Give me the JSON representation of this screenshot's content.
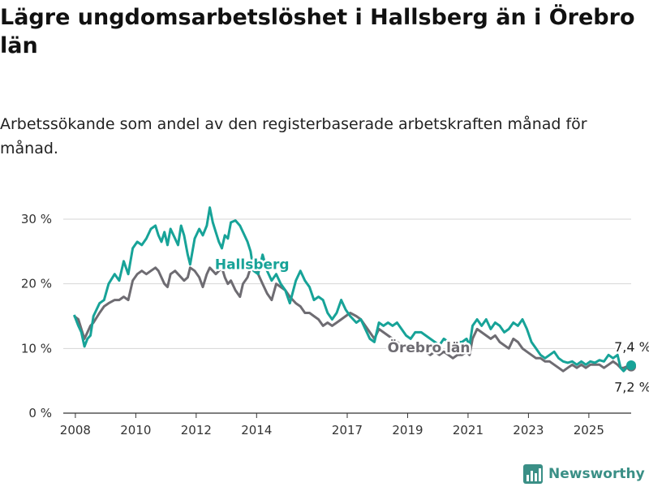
{
  "title": "Lägre ungdomsarbetslöshet i Hallsberg än i Örebro län",
  "subtitle": "Arbetssökande som andel av den registerbaserade arbetskraften månad för månad.",
  "brand": {
    "name": "Newsworthy",
    "icon": "newsworthy-logo-icon"
  },
  "colors": {
    "hallsberg": "#17a398",
    "orebro": "#6e6c72",
    "grid": "#d6d6d6",
    "axis": "#333333"
  },
  "chart_data": {
    "type": "line",
    "xlim": [
      2007.6,
      2026.4
    ],
    "ylim": [
      0,
      30
    ],
    "y_ticks": [
      0,
      10,
      20,
      30
    ],
    "y_tick_labels": [
      "0 %",
      "10 %",
      "20 %",
      "30 %"
    ],
    "x_ticks": [
      2008,
      2010,
      2012,
      2014,
      2017,
      2019,
      2021,
      2023,
      2025
    ],
    "x_tick_labels": [
      "2008",
      "2010",
      "2012",
      "2014",
      "2017",
      "2019",
      "2021",
      "2023",
      "2025"
    ],
    "grid": true,
    "series": [
      {
        "name": "Hallsberg",
        "color": "#17a398",
        "end_label": "7,4 %",
        "points": [
          [
            2007.96,
            15.2
          ],
          [
            2008.1,
            13.5
          ],
          [
            2008.2,
            12.5
          ],
          [
            2008.3,
            10.3
          ],
          [
            2008.4,
            11.5
          ],
          [
            2008.5,
            12.0
          ],
          [
            2008.6,
            15.0
          ],
          [
            2008.8,
            17.0
          ],
          [
            2008.95,
            17.5
          ],
          [
            2009.1,
            20.0
          ],
          [
            2009.3,
            21.5
          ],
          [
            2009.45,
            20.5
          ],
          [
            2009.6,
            23.5
          ],
          [
            2009.75,
            21.5
          ],
          [
            2009.9,
            25.5
          ],
          [
            2010.05,
            26.5
          ],
          [
            2010.2,
            26.0
          ],
          [
            2010.35,
            27.0
          ],
          [
            2010.5,
            28.5
          ],
          [
            2010.65,
            29.0
          ],
          [
            2010.75,
            27.5
          ],
          [
            2010.85,
            26.5
          ],
          [
            2010.95,
            28.0
          ],
          [
            2011.05,
            26.0
          ],
          [
            2011.15,
            28.5
          ],
          [
            2011.3,
            27.0
          ],
          [
            2011.4,
            26.0
          ],
          [
            2011.5,
            29.0
          ],
          [
            2011.6,
            27.5
          ],
          [
            2011.72,
            24.5
          ],
          [
            2011.8,
            23.0
          ],
          [
            2011.95,
            27.0
          ],
          [
            2012.1,
            28.5
          ],
          [
            2012.22,
            27.5
          ],
          [
            2012.35,
            29.0
          ],
          [
            2012.45,
            31.8
          ],
          [
            2012.55,
            29.5
          ],
          [
            2012.65,
            28.0
          ],
          [
            2012.75,
            26.5
          ],
          [
            2012.85,
            25.5
          ],
          [
            2012.95,
            27.5
          ],
          [
            2013.05,
            27.0
          ],
          [
            2013.15,
            29.5
          ],
          [
            2013.3,
            29.8
          ],
          [
            2013.45,
            29.0
          ],
          [
            2013.55,
            28.0
          ],
          [
            2013.7,
            26.5
          ],
          [
            2013.8,
            25.0
          ],
          [
            2013.9,
            22.0
          ],
          [
            2014.05,
            21.5
          ],
          [
            2014.2,
            24.5
          ],
          [
            2014.35,
            22.0
          ],
          [
            2014.5,
            20.5
          ],
          [
            2014.65,
            21.5
          ],
          [
            2014.8,
            20.0
          ],
          [
            2014.95,
            19.0
          ],
          [
            2015.1,
            17.0
          ],
          [
            2015.3,
            20.5
          ],
          [
            2015.45,
            22.0
          ],
          [
            2015.6,
            20.5
          ],
          [
            2015.75,
            19.5
          ],
          [
            2015.9,
            17.5
          ],
          [
            2016.05,
            18.0
          ],
          [
            2016.2,
            17.5
          ],
          [
            2016.35,
            15.5
          ],
          [
            2016.5,
            14.5
          ],
          [
            2016.65,
            15.5
          ],
          [
            2016.8,
            17.5
          ],
          [
            2016.95,
            16.0
          ],
          [
            2017.1,
            15.0
          ],
          [
            2017.3,
            14.0
          ],
          [
            2017.45,
            14.5
          ],
          [
            2017.6,
            13.0
          ],
          [
            2017.75,
            11.5
          ],
          [
            2017.9,
            11.0
          ],
          [
            2018.05,
            14.0
          ],
          [
            2018.2,
            13.5
          ],
          [
            2018.35,
            14.0
          ],
          [
            2018.5,
            13.5
          ],
          [
            2018.65,
            14.0
          ],
          [
            2018.8,
            13.0
          ],
          [
            2018.95,
            12.0
          ],
          [
            2019.1,
            11.5
          ],
          [
            2019.25,
            12.5
          ],
          [
            2019.45,
            12.5
          ],
          [
            2019.6,
            12.0
          ],
          [
            2019.75,
            11.5
          ],
          [
            2019.9,
            11.0
          ],
          [
            2020.05,
            10.5
          ],
          [
            2020.2,
            11.5
          ],
          [
            2020.35,
            11.0
          ],
          [
            2020.5,
            10.5
          ],
          [
            2020.65,
            11.0
          ],
          [
            2020.8,
            11.0
          ],
          [
            2020.95,
            11.5
          ],
          [
            2021.05,
            10.5
          ],
          [
            2021.15,
            13.5
          ],
          [
            2021.3,
            14.5
          ],
          [
            2021.45,
            13.5
          ],
          [
            2021.6,
            14.5
          ],
          [
            2021.75,
            13.0
          ],
          [
            2021.9,
            14.0
          ],
          [
            2022.05,
            13.5
          ],
          [
            2022.2,
            12.5
          ],
          [
            2022.35,
            13.0
          ],
          [
            2022.5,
            14.0
          ],
          [
            2022.65,
            13.5
          ],
          [
            2022.8,
            14.5
          ],
          [
            2022.95,
            13.0
          ],
          [
            2023.1,
            11.0
          ],
          [
            2023.25,
            10.0
          ],
          [
            2023.4,
            9.0
          ],
          [
            2023.55,
            8.5
          ],
          [
            2023.7,
            9.0
          ],
          [
            2023.85,
            9.5
          ],
          [
            2024.0,
            8.5
          ],
          [
            2024.15,
            8.0
          ],
          [
            2024.3,
            7.8
          ],
          [
            2024.45,
            8.0
          ],
          [
            2024.6,
            7.5
          ],
          [
            2024.75,
            8.0
          ],
          [
            2024.9,
            7.5
          ],
          [
            2025.05,
            8.0
          ],
          [
            2025.2,
            7.8
          ],
          [
            2025.35,
            8.2
          ],
          [
            2025.5,
            8.0
          ],
          [
            2025.65,
            9.0
          ],
          [
            2025.8,
            8.5
          ],
          [
            2025.95,
            9.0
          ],
          [
            2026.05,
            7.0
          ],
          [
            2026.15,
            6.5
          ],
          [
            2026.25,
            7.0
          ],
          [
            2026.4,
            7.4
          ]
        ]
      },
      {
        "name": "Örebro län",
        "color": "#6e6c72",
        "end_label": "7,2 %",
        "points": [
          [
            2007.96,
            15.0
          ],
          [
            2008.1,
            14.5
          ],
          [
            2008.2,
            13.0
          ],
          [
            2008.3,
            11.5
          ],
          [
            2008.4,
            12.5
          ],
          [
            2008.5,
            13.5
          ],
          [
            2008.6,
            14.0
          ],
          [
            2008.8,
            15.5
          ],
          [
            2008.95,
            16.5
          ],
          [
            2009.1,
            17.0
          ],
          [
            2009.3,
            17.5
          ],
          [
            2009.45,
            17.5
          ],
          [
            2009.6,
            18.0
          ],
          [
            2009.75,
            17.5
          ],
          [
            2009.9,
            20.5
          ],
          [
            2010.05,
            21.5
          ],
          [
            2010.2,
            22.0
          ],
          [
            2010.35,
            21.5
          ],
          [
            2010.5,
            22.0
          ],
          [
            2010.65,
            22.5
          ],
          [
            2010.75,
            22.0
          ],
          [
            2010.85,
            21.0
          ],
          [
            2010.95,
            20.0
          ],
          [
            2011.05,
            19.5
          ],
          [
            2011.15,
            21.5
          ],
          [
            2011.3,
            22.0
          ],
          [
            2011.4,
            21.5
          ],
          [
            2011.5,
            21.0
          ],
          [
            2011.6,
            20.5
          ],
          [
            2011.72,
            21.0
          ],
          [
            2011.8,
            22.5
          ],
          [
            2011.95,
            22.0
          ],
          [
            2012.1,
            21.0
          ],
          [
            2012.22,
            19.5
          ],
          [
            2012.35,
            21.5
          ],
          [
            2012.45,
            22.5
          ],
          [
            2012.55,
            22.0
          ],
          [
            2012.65,
            21.5
          ],
          [
            2012.75,
            22.0
          ],
          [
            2012.85,
            22.5
          ],
          [
            2012.95,
            21.0
          ],
          [
            2013.05,
            20.0
          ],
          [
            2013.15,
            20.5
          ],
          [
            2013.3,
            19.0
          ],
          [
            2013.45,
            18.0
          ],
          [
            2013.55,
            20.0
          ],
          [
            2013.7,
            21.0
          ],
          [
            2013.8,
            22.5
          ],
          [
            2013.9,
            23.0
          ],
          [
            2014.05,
            21.5
          ],
          [
            2014.2,
            20.0
          ],
          [
            2014.35,
            18.5
          ],
          [
            2014.5,
            17.5
          ],
          [
            2014.65,
            20.0
          ],
          [
            2014.8,
            19.5
          ],
          [
            2014.95,
            19.0
          ],
          [
            2015.1,
            18.0
          ],
          [
            2015.3,
            17.0
          ],
          [
            2015.45,
            16.5
          ],
          [
            2015.6,
            15.5
          ],
          [
            2015.75,
            15.5
          ],
          [
            2015.9,
            15.0
          ],
          [
            2016.05,
            14.5
          ],
          [
            2016.2,
            13.5
          ],
          [
            2016.35,
            14.0
          ],
          [
            2016.5,
            13.5
          ],
          [
            2016.65,
            14.0
          ],
          [
            2016.8,
            14.5
          ],
          [
            2016.95,
            15.0
          ],
          [
            2017.1,
            15.5
          ],
          [
            2017.3,
            15.0
          ],
          [
            2017.45,
            14.5
          ],
          [
            2017.6,
            13.5
          ],
          [
            2017.75,
            12.5
          ],
          [
            2017.9,
            11.5
          ],
          [
            2018.05,
            13.0
          ],
          [
            2018.2,
            12.5
          ],
          [
            2018.35,
            12.0
          ],
          [
            2018.5,
            11.5
          ],
          [
            2018.65,
            11.0
          ],
          [
            2018.8,
            10.5
          ],
          [
            2018.95,
            10.0
          ],
          [
            2019.1,
            9.5
          ],
          [
            2019.25,
            10.0
          ],
          [
            2019.45,
            10.0
          ],
          [
            2019.6,
            9.5
          ],
          [
            2019.75,
            9.0
          ],
          [
            2019.9,
            9.5
          ],
          [
            2020.05,
            9.0
          ],
          [
            2020.2,
            9.5
          ],
          [
            2020.35,
            9.0
          ],
          [
            2020.5,
            8.5
          ],
          [
            2020.65,
            9.0
          ],
          [
            2020.8,
            9.0
          ],
          [
            2020.95,
            9.5
          ],
          [
            2021.05,
            9.0
          ],
          [
            2021.15,
            11.5
          ],
          [
            2021.3,
            13.0
          ],
          [
            2021.45,
            12.5
          ],
          [
            2021.6,
            12.0
          ],
          [
            2021.75,
            11.5
          ],
          [
            2021.9,
            12.0
          ],
          [
            2022.05,
            11.0
          ],
          [
            2022.2,
            10.5
          ],
          [
            2022.35,
            10.0
          ],
          [
            2022.5,
            11.5
          ],
          [
            2022.65,
            11.0
          ],
          [
            2022.8,
            10.0
          ],
          [
            2022.95,
            9.5
          ],
          [
            2023.1,
            9.0
          ],
          [
            2023.25,
            8.5
          ],
          [
            2023.4,
            8.5
          ],
          [
            2023.55,
            8.0
          ],
          [
            2023.7,
            8.0
          ],
          [
            2023.85,
            7.5
          ],
          [
            2024.0,
            7.0
          ],
          [
            2024.15,
            6.5
          ],
          [
            2024.3,
            7.0
          ],
          [
            2024.45,
            7.5
          ],
          [
            2024.6,
            7.0
          ],
          [
            2024.75,
            7.5
          ],
          [
            2024.9,
            7.0
          ],
          [
            2025.05,
            7.5
          ],
          [
            2025.2,
            7.5
          ],
          [
            2025.35,
            7.5
          ],
          [
            2025.5,
            7.0
          ],
          [
            2025.65,
            7.5
          ],
          [
            2025.8,
            8.0
          ],
          [
            2025.95,
            7.5
          ],
          [
            2026.05,
            7.0
          ],
          [
            2026.15,
            7.0
          ],
          [
            2026.25,
            7.2
          ],
          [
            2026.4,
            7.2
          ]
        ]
      }
    ]
  }
}
